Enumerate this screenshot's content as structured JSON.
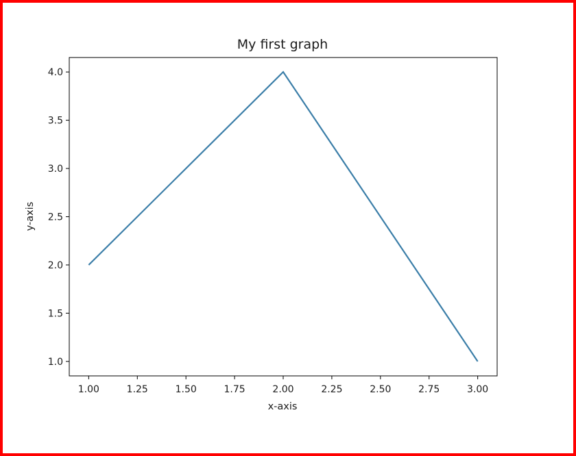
{
  "border_color": "#ff0000",
  "chart_data": {
    "type": "line",
    "title": "My first graph",
    "xlabel": "x-axis",
    "ylabel": "y-axis",
    "xlim": [
      0.9,
      3.1
    ],
    "ylim": [
      0.85,
      4.15
    ],
    "x_ticks": [
      1.0,
      1.25,
      1.5,
      1.75,
      2.0,
      2.25,
      2.5,
      2.75,
      3.0
    ],
    "x_tick_labels": [
      "1.00",
      "1.25",
      "1.50",
      "1.75",
      "2.00",
      "2.25",
      "2.50",
      "2.75",
      "3.00"
    ],
    "y_ticks": [
      1.0,
      1.5,
      2.0,
      2.5,
      3.0,
      3.5,
      4.0
    ],
    "y_tick_labels": [
      "1.0",
      "1.5",
      "2.0",
      "2.5",
      "3.0",
      "3.5",
      "4.0"
    ],
    "grid": false,
    "series": [
      {
        "x": [
          1,
          2,
          3
        ],
        "y": [
          2,
          4,
          1
        ],
        "color": "#3b7ea8"
      }
    ]
  }
}
